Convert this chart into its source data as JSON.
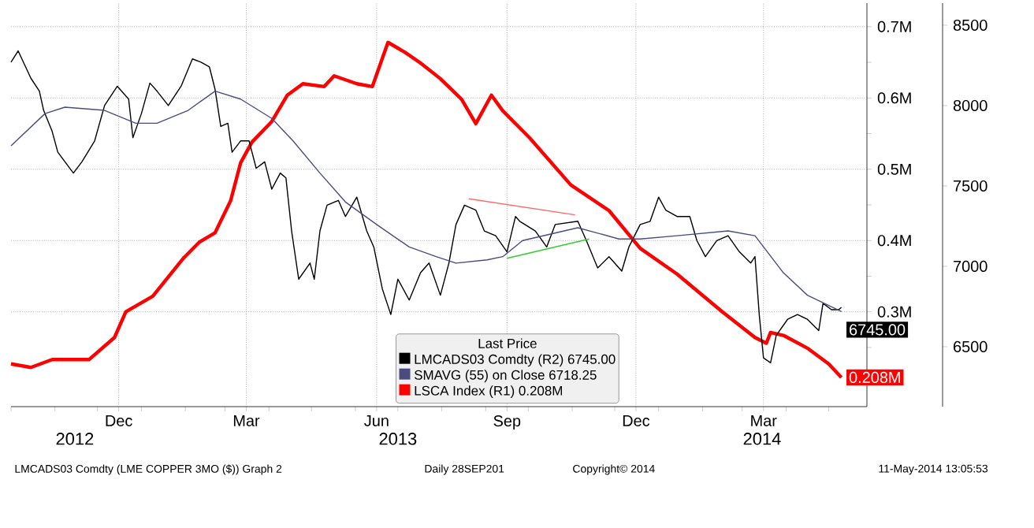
{
  "chart_data": {
    "type": "line",
    "xlim": [
      "2012-10-01",
      "2014-05-28"
    ],
    "xticks": [
      {
        "value": "2012-10-01",
        "label": null
      },
      {
        "value": "2012-11-01",
        "label": null
      },
      {
        "value": "2012-12-01",
        "label": null
      },
      {
        "value": "2013-01-01",
        "label": null
      },
      {
        "value": "2013-02-01",
        "label": null
      },
      {
        "value": "2013-03-01",
        "label": null
      },
      {
        "value": "2013-04-01",
        "label": null
      },
      {
        "value": "2013-05-01",
        "label": null
      },
      {
        "value": "2013-06-01",
        "label": null
      },
      {
        "value": "2013-07-01",
        "label": null
      },
      {
        "value": "2013-08-01",
        "label": null
      },
      {
        "value": "2013-09-01",
        "label": null
      },
      {
        "value": "2013-10-01",
        "label": null
      },
      {
        "value": "2013-11-01",
        "label": null
      },
      {
        "value": "2013-12-01",
        "label": null
      },
      {
        "value": "2014-01-01",
        "label": null
      },
      {
        "value": "2014-02-01",
        "label": null
      },
      {
        "value": "2014-03-01",
        "label": null
      },
      {
        "value": "2014-04-01",
        "label": null
      },
      {
        "value": "2014-05-01",
        "label": null
      },
      {
        "value": "2012-12-16",
        "label": "Dec"
      },
      {
        "value": "2013-03-16",
        "label": "Mar"
      },
      {
        "value": "2013-06-16",
        "label": "Jun"
      },
      {
        "value": "2013-09-16",
        "label": "Sep"
      },
      {
        "value": "2013-12-16",
        "label": "Dec"
      },
      {
        "value": "2014-03-16",
        "label": "Mar"
      }
    ],
    "x2lim": [
      "2012-10-01",
      "2014-05-28"
    ],
    "x2ticks": [
      {
        "value": "2012-11-15",
        "label": "2012"
      },
      {
        "value": "2013-07-01",
        "label": "2013"
      },
      {
        "value": "2014-03-15",
        "label": "2014"
      }
    ],
    "ylim": [
      0.167,
      0.733
    ],
    "yticks": [
      {
        "value": 0.25,
        "label": null
      },
      {
        "value": 0.3,
        "label": "0.3M"
      },
      {
        "value": 0.35,
        "label": null
      },
      {
        "value": 0.4,
        "label": "0.4M"
      },
      {
        "value": 0.45,
        "label": null
      },
      {
        "value": 0.5,
        "label": "0.5M"
      },
      {
        "value": 0.55,
        "label": null
      },
      {
        "value": 0.6,
        "label": "0.6M"
      },
      {
        "value": 0.65,
        "label": null
      },
      {
        "value": 0.7,
        "label": "0.7M"
      }
    ],
    "y2lim": [
      6127,
      8637
    ],
    "y2ticks": [
      6500,
      7000,
      7500,
      8000,
      8500
    ],
    "grid": true,
    "legend": "bottom",
    "legend_title": "Last Price",
    "annotations": [
      "LMCADS03 Comdty (LME COPPER 3MO ($)) Graph 2",
      "Daily 28SEP201",
      "Copyright© 2014",
      "11-May-2014 13:05:53"
    ],
    "series": [
      {
        "name": "LMCADS03 Comdty (R2) 6745.00",
        "color": "#000000",
        "axis": "y2",
        "x": [
          "2012-10-01",
          "2012-10-06",
          "2012-10-15",
          "2012-10-21",
          "2012-10-24",
          "2012-10-30",
          "2012-11-03",
          "2012-11-14",
          "2012-11-20",
          "2012-11-29",
          "2012-12-06",
          "2012-12-15",
          "2012-12-23",
          "2012-12-26",
          "2013-01-01",
          "2013-01-07",
          "2013-01-12",
          "2013-01-20",
          "2013-01-29",
          "2013-02-06",
          "2013-02-12",
          "2013-02-18",
          "2013-02-22",
          "2013-02-26",
          "2013-03-03",
          "2013-03-06",
          "2013-03-12",
          "2013-03-18",
          "2013-03-23",
          "2013-03-29",
          "2013-04-03",
          "2013-04-09",
          "2013-04-13",
          "2013-04-17",
          "2013-04-22",
          "2013-04-30",
          "2013-05-03",
          "2013-05-07",
          "2013-05-12",
          "2013-05-20",
          "2013-05-25",
          "2013-06-02",
          "2013-06-09",
          "2013-06-14",
          "2013-06-20",
          "2013-06-26",
          "2013-07-01",
          "2013-07-09",
          "2013-07-17",
          "2013-07-23",
          "2013-07-31",
          "2013-08-06",
          "2013-08-11",
          "2013-08-17",
          "2013-08-25",
          "2013-08-31",
          "2013-09-08",
          "2013-09-16",
          "2013-09-22",
          "2013-09-25",
          "2013-10-06",
          "2013-10-14",
          "2013-10-20",
          "2013-11-05",
          "2013-11-11",
          "2013-11-19",
          "2013-11-27",
          "2013-12-06",
          "2013-12-11",
          "2013-12-19",
          "2013-12-26",
          "2014-01-01",
          "2014-01-06",
          "2014-01-14",
          "2014-01-23",
          "2014-01-28",
          "2014-02-03",
          "2014-02-11",
          "2014-02-19",
          "2014-02-27",
          "2014-03-07",
          "2014-03-10",
          "2014-03-13",
          "2014-03-16",
          "2014-03-21",
          "2014-03-25",
          "2014-04-02",
          "2014-04-09",
          "2014-04-16",
          "2014-04-24",
          "2014-04-27",
          "2014-05-03",
          "2014-05-08",
          "2014-05-10"
        ],
        "values": [
          8270,
          8340,
          8170,
          8090,
          7970,
          7840,
          7710,
          7580,
          7650,
          7780,
          8000,
          8120,
          8040,
          7800,
          7950,
          8140,
          8090,
          8000,
          8120,
          8290,
          8270,
          8240,
          8100,
          7870,
          7890,
          7710,
          7780,
          7780,
          7610,
          7650,
          7480,
          7580,
          7550,
          7220,
          6920,
          7020,
          6920,
          7220,
          7380,
          7410,
          7310,
          7430,
          7220,
          7120,
          6860,
          6700,
          6920,
          6790,
          6960,
          7020,
          6820,
          7020,
          7260,
          7380,
          7350,
          7220,
          7190,
          7090,
          7310,
          7280,
          7220,
          7120,
          7260,
          7280,
          7160,
          6990,
          7060,
          6970,
          7120,
          7260,
          7280,
          7430,
          7350,
          7310,
          7310,
          7160,
          7060,
          7160,
          7190,
          7090,
          7020,
          7060,
          6700,
          6430,
          6400,
          6570,
          6670,
          6700,
          6670,
          6600,
          6770,
          6730,
          6730,
          6745
        ],
        "value_labels": [
          null,
          null,
          null,
          null,
          null,
          null,
          null,
          null,
          null,
          null,
          null,
          null,
          null,
          null,
          null,
          null,
          null,
          null,
          null,
          null,
          null,
          null,
          null,
          null,
          null,
          null,
          null,
          null,
          null,
          null,
          null,
          null,
          null,
          null,
          null,
          null,
          null,
          null,
          null,
          null,
          null,
          null,
          null,
          null,
          null,
          null,
          null,
          null,
          null,
          null,
          null,
          null,
          null,
          null,
          null,
          null,
          null,
          null,
          null,
          null,
          null,
          null,
          null,
          null,
          null,
          null,
          null,
          null,
          null,
          null,
          null,
          null,
          null,
          null,
          null,
          null,
          null,
          null,
          null,
          null,
          null,
          null,
          null,
          null,
          null,
          null,
          null,
          null,
          null,
          null,
          null,
          null,
          null,
          "6745.00"
        ]
      },
      {
        "name": "SMAVG (55) on Close 6718.25",
        "color": "#4b4b80",
        "axis": "y2",
        "x": [
          "2012-10-01",
          "2012-10-25",
          "2012-11-08",
          "2012-12-06",
          "2012-12-28",
          "2013-01-12",
          "2013-02-03",
          "2013-02-22",
          "2013-03-12",
          "2013-04-03",
          "2013-04-18",
          "2013-05-07",
          "2013-05-25",
          "2013-06-16",
          "2013-07-09",
          "2013-07-28",
          "2013-08-11",
          "2013-09-02",
          "2013-09-13",
          "2013-09-27",
          "2013-11-05",
          "2013-12-04",
          "2013-12-19",
          "2014-01-14",
          "2014-02-19",
          "2014-03-10",
          "2014-03-30",
          "2014-04-16",
          "2014-05-10"
        ],
        "values": [
          7750,
          7950,
          7990,
          7970,
          7890,
          7890,
          7970,
          8090,
          8040,
          7920,
          7780,
          7580,
          7400,
          7260,
          7120,
          7060,
          7020,
          7040,
          7060,
          7160,
          7240,
          7170,
          7170,
          7190,
          7220,
          7190,
          6960,
          6820,
          6718.25
        ]
      },
      {
        "name": "LSCA Index (R1) 0.208M",
        "color": "#ff0000",
        "axis": "y",
        "x": [
          "2012-10-01",
          "2012-10-15",
          "2012-10-30",
          "2012-11-25",
          "2012-12-13",
          "2012-12-21",
          "2013-01-09",
          "2013-01-20",
          "2013-01-31",
          "2013-02-11",
          "2013-02-22",
          "2013-03-05",
          "2013-03-12",
          "2013-03-20",
          "2013-04-03",
          "2013-04-14",
          "2013-04-25",
          "2013-05-10",
          "2013-05-17",
          "2013-06-02",
          "2013-06-13",
          "2013-06-24",
          "2013-07-06",
          "2013-07-17",
          "2013-07-31",
          "2013-08-15",
          "2013-08-25",
          "2013-09-05",
          "2013-09-13",
          "2013-10-02",
          "2013-10-31",
          "2013-11-27",
          "2013-12-19",
          "2014-01-14",
          "2014-02-15",
          "2014-03-10",
          "2014-03-18",
          "2014-03-21",
          "2014-03-30",
          "2014-04-16",
          "2014-05-01",
          "2014-05-10"
        ],
        "values": [
          0.227,
          0.222,
          0.233,
          0.233,
          0.264,
          0.3,
          0.322,
          0.349,
          0.376,
          0.398,
          0.411,
          0.456,
          0.509,
          0.538,
          0.567,
          0.604,
          0.62,
          0.616,
          0.631,
          0.62,
          0.616,
          0.678,
          0.664,
          0.649,
          0.627,
          0.598,
          0.564,
          0.604,
          0.582,
          0.544,
          0.478,
          0.442,
          0.389,
          0.353,
          0.3,
          0.264,
          0.256,
          0.271,
          0.267,
          0.249,
          0.227,
          0.208
        ],
        "value_labels": [
          null,
          null,
          null,
          null,
          null,
          null,
          null,
          null,
          null,
          null,
          null,
          null,
          null,
          null,
          null,
          null,
          null,
          null,
          null,
          null,
          null,
          null,
          null,
          null,
          null,
          null,
          null,
          null,
          null,
          null,
          null,
          null,
          null,
          null,
          null,
          null,
          null,
          null,
          null,
          null,
          null,
          "0.208M"
        ]
      },
      {
        "color": "#ff6666",
        "axis": "y2",
        "x": [
          "2013-08-20",
          "2013-11-03"
        ],
        "values": [
          7420,
          7320
        ]
      },
      {
        "color": "#33cc33",
        "axis": "y2",
        "x": [
          "2013-09-16",
          "2013-11-13"
        ],
        "values": [
          7050,
          7170
        ]
      }
    ]
  }
}
